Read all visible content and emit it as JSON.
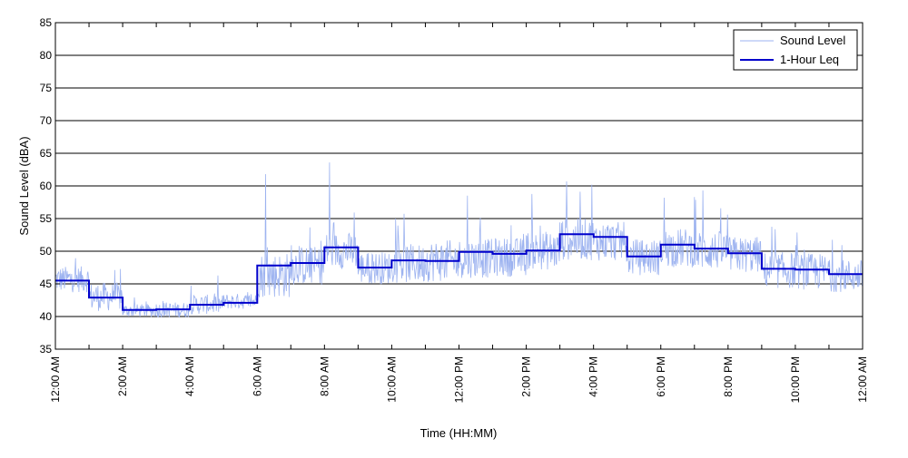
{
  "chart_data": {
    "type": "line",
    "title": "",
    "xlabel": "Time (HH:MM)",
    "ylabel": "Sound Level (dBA)",
    "ylim": [
      35,
      85
    ],
    "yticks": [
      35,
      40,
      45,
      50,
      55,
      60,
      65,
      70,
      75,
      80,
      85
    ],
    "xlim_hours": [
      0,
      24
    ],
    "xticks": [
      {
        "hour": 0,
        "label": "12:00 AM"
      },
      {
        "hour": 2,
        "label": "2:00 AM"
      },
      {
        "hour": 4,
        "label": "4:00 AM"
      },
      {
        "hour": 6,
        "label": "6:00 AM"
      },
      {
        "hour": 8,
        "label": "8:00 AM"
      },
      {
        "hour": 10,
        "label": "10:00 AM"
      },
      {
        "hour": 12,
        "label": "12:00 PM"
      },
      {
        "hour": 14,
        "label": "2:00 PM"
      },
      {
        "hour": 16,
        "label": "4:00 PM"
      },
      {
        "hour": 18,
        "label": "6:00 PM"
      },
      {
        "hour": 20,
        "label": "8:00 PM"
      },
      {
        "hour": 22,
        "label": "10:00 PM"
      },
      {
        "hour": 24,
        "label": "12:00 AM"
      }
    ],
    "grid": "horizontal",
    "legend_position": "top-right",
    "series": [
      {
        "name": "Sound Level",
        "color": "#9db3f0",
        "style": "thin",
        "hourly_mean": [
          45.5,
          42.8,
          40.8,
          40.9,
          41.7,
          42.2,
          46.0,
          47.5,
          49.8,
          47.2,
          47.8,
          48.2,
          48.6,
          48.8,
          49.8,
          51.5,
          51.2,
          48.8,
          50.2,
          49.8,
          49.2,
          46.8,
          46.6,
          46.0
        ],
        "hourly_spread": [
          2.0,
          2.2,
          1.0,
          1.2,
          1.5,
          1.2,
          3.5,
          3.0,
          2.8,
          2.5,
          3.0,
          3.2,
          3.0,
          3.0,
          3.0,
          3.2,
          3.0,
          2.8,
          3.0,
          3.0,
          2.8,
          2.8,
          2.8,
          2.5
        ],
        "peaks": [
          {
            "hour": 6.25,
            "value": 61.8
          },
          {
            "hour": 8.15,
            "value": 63.6
          },
          {
            "hour": 12.25,
            "value": 58.5
          },
          {
            "hour": 15.2,
            "value": 60.7
          },
          {
            "hour": 15.95,
            "value": 60.2
          },
          {
            "hour": 19.25,
            "value": 59.3
          },
          {
            "hour": 18.1,
            "value": 58.2
          },
          {
            "hour": 19.0,
            "value": 58.3
          }
        ]
      },
      {
        "name": "1-Hour Leq",
        "color": "#0000cc",
        "style": "step",
        "hour_start": [
          0,
          1,
          2,
          3,
          4,
          5,
          6,
          7,
          8,
          9,
          10,
          11,
          12,
          13,
          14,
          15,
          16,
          17,
          18,
          19,
          20,
          21,
          22,
          23
        ],
        "values": [
          45.5,
          42.9,
          41.0,
          41.1,
          41.8,
          42.1,
          47.8,
          48.2,
          50.6,
          47.5,
          48.6,
          48.5,
          49.9,
          49.6,
          50.1,
          52.6,
          52.2,
          49.2,
          51.0,
          50.4,
          49.7,
          47.3,
          47.2,
          46.5
        ]
      }
    ]
  }
}
